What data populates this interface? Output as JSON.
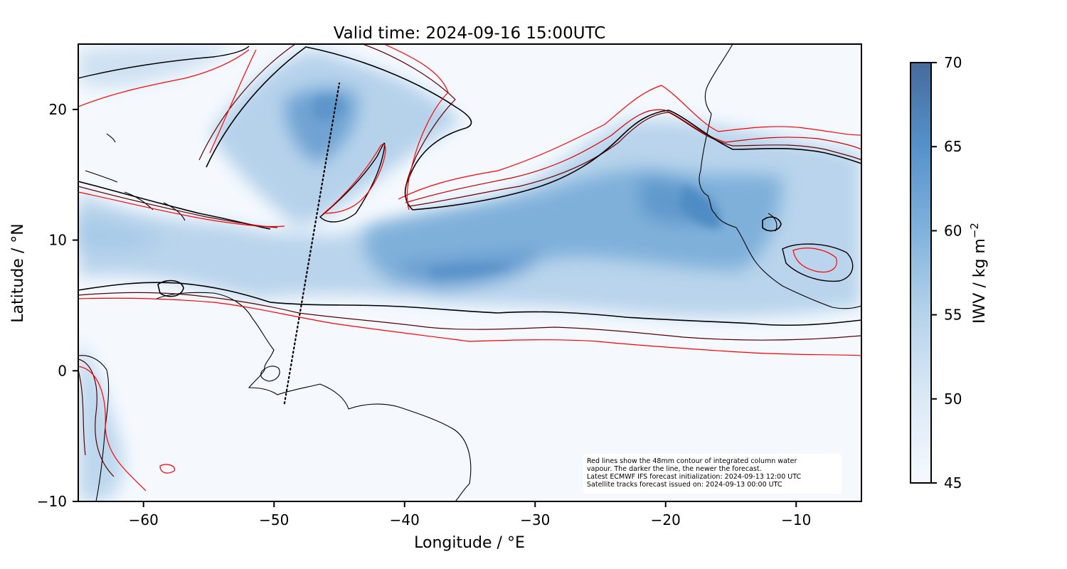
{
  "title": "Valid time: 2024-09-16 15:00UTC",
  "map": {
    "x_axis": {
      "label": "Longitude / °E",
      "range": [
        -65,
        -5
      ],
      "ticks": [
        -60,
        -50,
        -40,
        -30,
        -20,
        -10
      ],
      "tick_labels": [
        "−60",
        "−50",
        "−40",
        "−30",
        "−20",
        "−10"
      ]
    },
    "y_axis": {
      "label": "Latitude / °N",
      "range": [
        -10,
        25
      ],
      "ticks": [
        20,
        10,
        0,
        -10
      ],
      "tick_labels": [
        "20",
        "10",
        "0",
        "−10"
      ]
    },
    "colorbar": {
      "label": "IWV / kg m",
      "label_exponent": "−2",
      "range": [
        45,
        70
      ],
      "ticks": [
        70,
        65,
        60,
        55,
        50,
        45
      ],
      "tick_labels": [
        "70",
        "65",
        "60",
        "55",
        "50",
        "45"
      ],
      "color_low": "#f5f9fe",
      "color_high": "#466b9c"
    },
    "note_lines": [
      "Red lines show the 48mm contour of integrated column water",
      "vapour. The darker the line, the newer the forecast.",
      "Latest ECMWF IFS forecast initialization: 2024-09-13 12:00 UTC",
      "Satellite tracks forecast issued on: 2024-09-13 00:00 UTC"
    ],
    "satellite_track": {
      "start": [
        -49.2,
        -2.5
      ],
      "end": [
        -45,
        22
      ]
    },
    "contour_colors": [
      "#000000",
      "#3a0000",
      "#700000",
      "#b00000",
      "#ff0000"
    ]
  }
}
